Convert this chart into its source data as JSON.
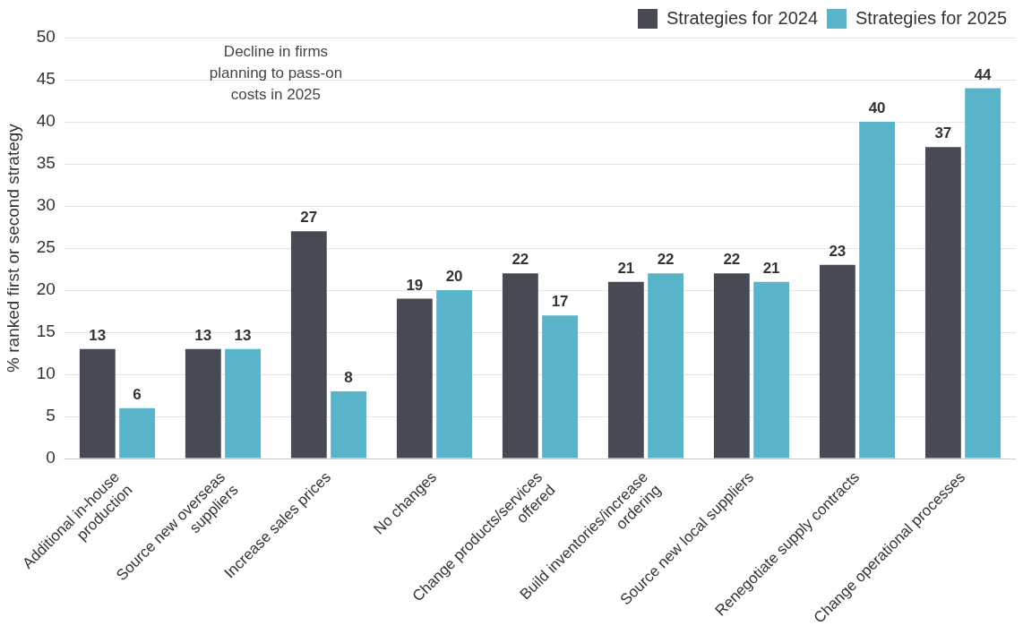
{
  "chart_data": {
    "type": "bar",
    "ylabel": "% ranked first or second strategy",
    "categories": [
      "Additional in-house\nproduction",
      "Source new overseas\nsuppliers",
      "Increase sales prices",
      "No changes",
      "Change products/services\noffered",
      "Build inventories/increase\nordering",
      "Source new local suppliers",
      "Renegotiate supply contracts",
      "Change operational processes"
    ],
    "series": [
      {
        "name": "Strategies for 2024",
        "color": "#474a54",
        "values": [
          13,
          13,
          27,
          19,
          22,
          21,
          22,
          23,
          37
        ]
      },
      {
        "name": "Strategies for 2025",
        "color": "#5ab4c9",
        "values": [
          6,
          13,
          8,
          20,
          17,
          22,
          21,
          40,
          44
        ]
      }
    ],
    "ylim": [
      0,
      50
    ],
    "yticks": [
      0,
      5,
      10,
      15,
      20,
      25,
      30,
      35,
      40,
      45,
      50
    ],
    "grid": "y",
    "legend": "top right",
    "data_labels": true,
    "annotations": [
      "Decline in firms\nplanning to pass-on\ncosts in 2025"
    ]
  }
}
